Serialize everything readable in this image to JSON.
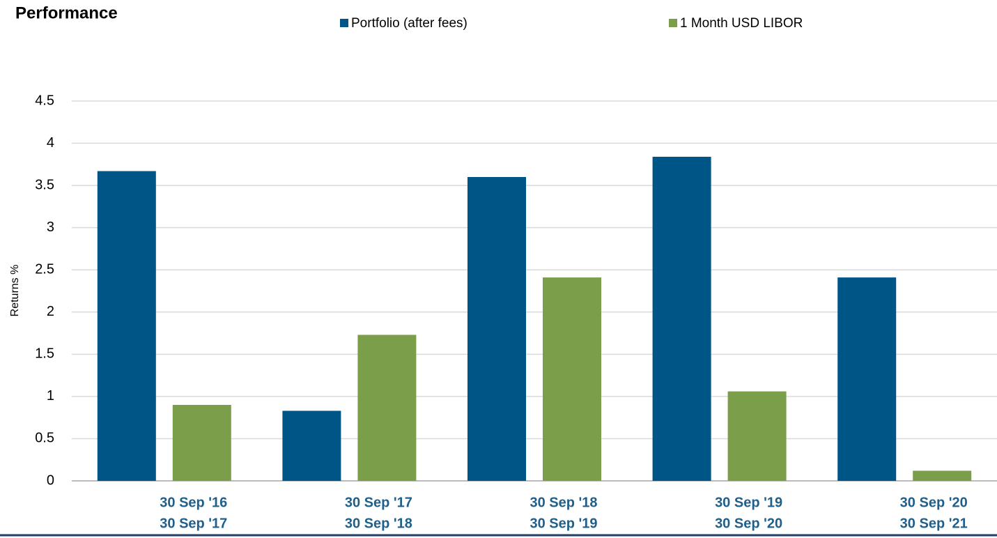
{
  "chart_data": {
    "type": "bar",
    "title": "Performance",
    "ylabel": "Returns %",
    "categories": [
      [
        "30 Sep '16",
        "30 Sep '17"
      ],
      [
        "30 Sep '17",
        "30 Sep '18"
      ],
      [
        "30 Sep '18",
        "30 Sep '19"
      ],
      [
        "30 Sep '19",
        "30 Sep '20"
      ],
      [
        "30 Sep '20",
        "30 Sep '21"
      ]
    ],
    "series": [
      {
        "name": "Portfolio (after fees)",
        "color": "#005587",
        "values": [
          3.67,
          0.83,
          3.6,
          3.84,
          2.41
        ]
      },
      {
        "name": "1 Month USD LIBOR",
        "color": "#7a9e4a",
        "values": [
          0.9,
          1.73,
          2.41,
          1.06,
          0.12
        ]
      }
    ],
    "ylim": [
      0,
      4.5
    ],
    "yticks": [
      0,
      0.5,
      1,
      1.5,
      2,
      2.5,
      3,
      3.5,
      4,
      4.5
    ],
    "grid": true
  }
}
